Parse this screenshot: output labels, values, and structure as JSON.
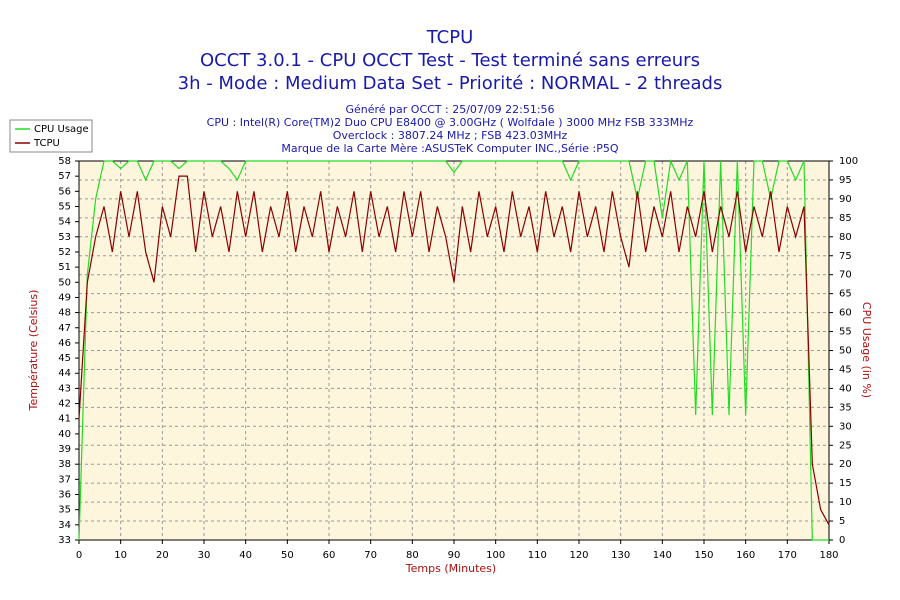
{
  "chart_data": {
    "type": "line",
    "title": "TCPU",
    "subtitles": [
      "OCCT 3.0.1 - CPU OCCT Test - Test terminé sans erreurs",
      "3h - Mode : Medium Data Set - Priorité : NORMAL - 2 threads"
    ],
    "info_lines": [
      "Généré par OCCT : 25/07/09 22:51:56",
      "CPU : Intel(R) Core(TM)2 Duo CPU E8400 @ 3.00GHz ( Wolfdale ) 3000 MHz FSB 333MHz",
      "Overclock : 3807.24 MHz ; FSB 423.03MHz",
      "Marque de la Carte Mère :ASUSTeK Computer INC.,Série :P5Q"
    ],
    "x_label": "Temps (Minutes)",
    "y_label": "Température (Celsius)",
    "y2_label": "CPU Usage (in %)",
    "x": [
      0,
      2,
      4,
      6,
      8,
      10,
      12,
      14,
      16,
      18,
      20,
      22,
      24,
      26,
      28,
      30,
      32,
      34,
      36,
      38,
      40,
      42,
      44,
      46,
      48,
      50,
      52,
      54,
      56,
      58,
      60,
      62,
      64,
      66,
      68,
      70,
      72,
      74,
      76,
      78,
      80,
      82,
      84,
      86,
      88,
      90,
      92,
      94,
      96,
      98,
      100,
      102,
      104,
      106,
      108,
      110,
      112,
      114,
      116,
      118,
      120,
      122,
      124,
      126,
      128,
      130,
      132,
      134,
      136,
      138,
      140,
      142,
      144,
      146,
      148,
      150,
      152,
      154,
      156,
      158,
      160,
      162,
      164,
      166,
      168,
      170,
      172,
      174,
      176,
      178,
      180
    ],
    "series": [
      {
        "name": "CPU Usage",
        "color": "#22dd22",
        "axis": "y2",
        "values": [
          0,
          70,
          90,
          100,
          100,
          98,
          100,
          100,
          95,
          100,
          100,
          100,
          98,
          100,
          100,
          100,
          100,
          100,
          98,
          95,
          100,
          100,
          100,
          100,
          100,
          100,
          100,
          100,
          100,
          100,
          100,
          100,
          100,
          100,
          100,
          100,
          100,
          100,
          100,
          100,
          100,
          100,
          100,
          100,
          100,
          97,
          100,
          100,
          100,
          100,
          100,
          100,
          100,
          100,
          100,
          100,
          100,
          100,
          100,
          95,
          100,
          100,
          100,
          100,
          100,
          100,
          100,
          90,
          100,
          100,
          85,
          100,
          95,
          100,
          33,
          100,
          33,
          100,
          33,
          100,
          33,
          100,
          100,
          90,
          100,
          100,
          95,
          100,
          0,
          0,
          0
        ]
      },
      {
        "name": "TCPU",
        "color": "#8b0000",
        "axis": "y",
        "values": [
          41,
          50,
          53,
          55,
          52,
          56,
          53,
          56,
          52,
          50,
          55,
          53,
          57,
          57,
          52,
          56,
          53,
          55,
          52,
          56,
          53,
          56,
          52,
          55,
          53,
          56,
          52,
          55,
          53,
          56,
          52,
          55,
          53,
          56,
          52,
          56,
          53,
          55,
          52,
          56,
          53,
          56,
          52,
          55,
          53,
          50,
          55,
          52,
          56,
          53,
          55,
          52,
          56,
          53,
          55,
          52,
          56,
          53,
          55,
          52,
          56,
          53,
          55,
          52,
          56,
          53,
          51,
          56,
          52,
          55,
          53,
          56,
          52,
          55,
          53,
          56,
          52,
          55,
          53,
          56,
          52,
          55,
          53,
          56,
          52,
          55,
          53,
          55,
          38,
          35,
          34
        ]
      }
    ],
    "xlim": [
      0,
      180
    ],
    "xticks": [
      0,
      10,
      20,
      30,
      40,
      50,
      60,
      70,
      80,
      90,
      100,
      110,
      120,
      130,
      140,
      150,
      160,
      170,
      180
    ],
    "ylim": [
      33,
      58
    ],
    "yticks": [
      33,
      34,
      35,
      36,
      37,
      38,
      39,
      40,
      41,
      42,
      43,
      44,
      45,
      46,
      47,
      48,
      49,
      50,
      51,
      52,
      53,
      54,
      55,
      56,
      57,
      58
    ],
    "y2lim": [
      0,
      100
    ],
    "y2ticks": [
      0,
      5,
      10,
      15,
      20,
      25,
      30,
      35,
      40,
      45,
      50,
      55,
      60,
      65,
      70,
      75,
      80,
      85,
      90,
      95,
      100
    ],
    "grid": true
  }
}
